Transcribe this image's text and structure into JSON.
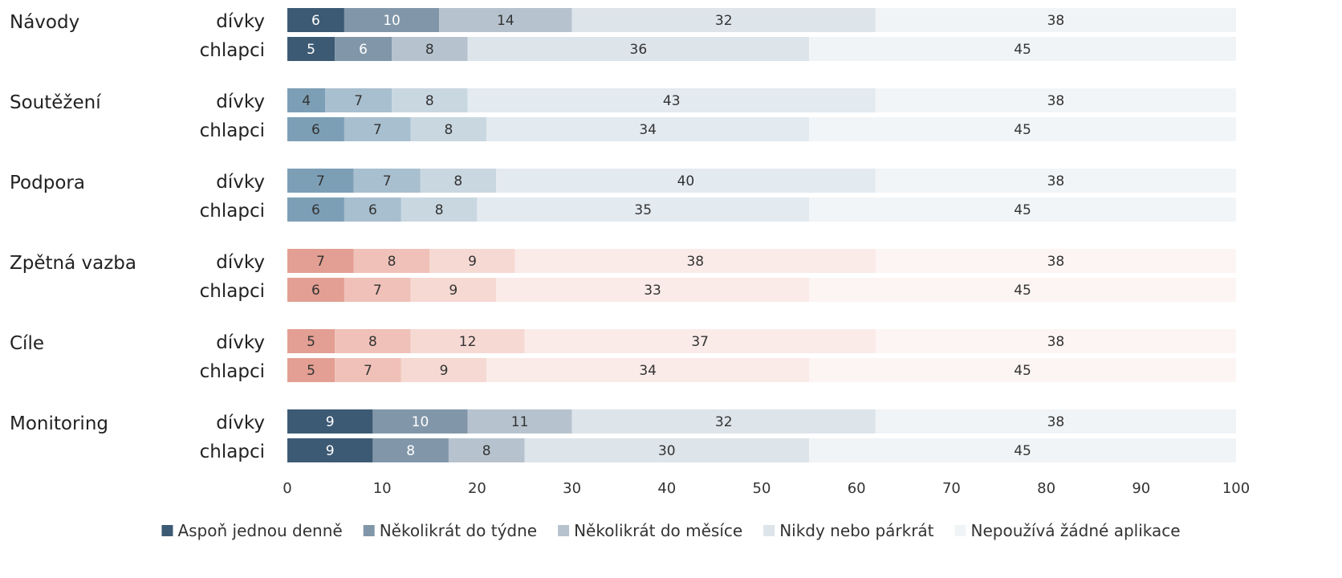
{
  "chart_data": {
    "type": "bar",
    "orientation": "horizontal",
    "stacked": true,
    "xlim": [
      0,
      100
    ],
    "x_ticks": [
      0,
      10,
      20,
      30,
      40,
      50,
      60,
      70,
      80,
      90,
      100
    ],
    "grid": false,
    "legend_position": "bottom",
    "series_names": [
      "Aspoň jednou denně",
      "Několikrát do týdne",
      "Několikrát do měsíce",
      "Nikdy nebo párkrát",
      "Nepoužívá žádné aplikace"
    ],
    "groups": [
      {
        "label": "Návody",
        "palette": [
          "#3d5a74",
          "#8197a9",
          "#b6c3ce",
          "#dde4ea",
          "#f1f4f6"
        ],
        "rows": [
          {
            "label": "dívky",
            "values": [
              6,
              10,
              14,
              32,
              38
            ]
          },
          {
            "label": "chlapci",
            "values": [
              5,
              6,
              8,
              36,
              45
            ]
          }
        ]
      },
      {
        "label": "Soutěžení",
        "palette": [
          "#7d9fb6",
          "#a8bfcf",
          "#c9d7e1",
          "#e3eaf0",
          "#f2f5f7"
        ],
        "rows": [
          {
            "label": "dívky",
            "values": [
              4,
              7,
              8,
              43,
              38
            ]
          },
          {
            "label": "chlapci",
            "values": [
              6,
              7,
              8,
              34,
              45
            ]
          }
        ]
      },
      {
        "label": "Podpora",
        "palette": [
          "#7d9fb6",
          "#a8bfcf",
          "#c9d7e1",
          "#e3eaf0",
          "#f2f5f7"
        ],
        "rows": [
          {
            "label": "dívky",
            "values": [
              7,
              7,
              8,
              40,
              38
            ]
          },
          {
            "label": "chlapci",
            "values": [
              6,
              6,
              8,
              35,
              45
            ]
          }
        ]
      },
      {
        "label": "Zpětná vazba",
        "palette": [
          "#e39f93",
          "#f0c1b8",
          "#f6d9d3",
          "#faebe8",
          "#fcf5f3"
        ],
        "rows": [
          {
            "label": "dívky",
            "values": [
              7,
              8,
              9,
              38,
              38
            ]
          },
          {
            "label": "chlapci",
            "values": [
              6,
              7,
              9,
              33,
              45
            ]
          }
        ]
      },
      {
        "label": "Cíle",
        "palette": [
          "#e39f93",
          "#f0c1b8",
          "#f6d9d3",
          "#faebe8",
          "#fcf5f3"
        ],
        "rows": [
          {
            "label": "dívky",
            "values": [
              5,
              8,
              12,
              37,
              38
            ]
          },
          {
            "label": "chlapci",
            "values": [
              5,
              7,
              9,
              34,
              45
            ]
          }
        ]
      },
      {
        "label": "Monitoring",
        "palette": [
          "#3d5a74",
          "#8197a9",
          "#b6c3ce",
          "#dde4ea",
          "#f1f4f6"
        ],
        "rows": [
          {
            "label": "dívky",
            "values": [
              9,
              10,
              11,
              32,
              38
            ]
          },
          {
            "label": "chlapci",
            "values": [
              9,
              8,
              8,
              30,
              45
            ]
          }
        ]
      }
    ],
    "legend_colors": [
      "#3d5a74",
      "#8197a9",
      "#b6c3ce",
      "#dde4ea",
      "#f1f4f6"
    ]
  }
}
